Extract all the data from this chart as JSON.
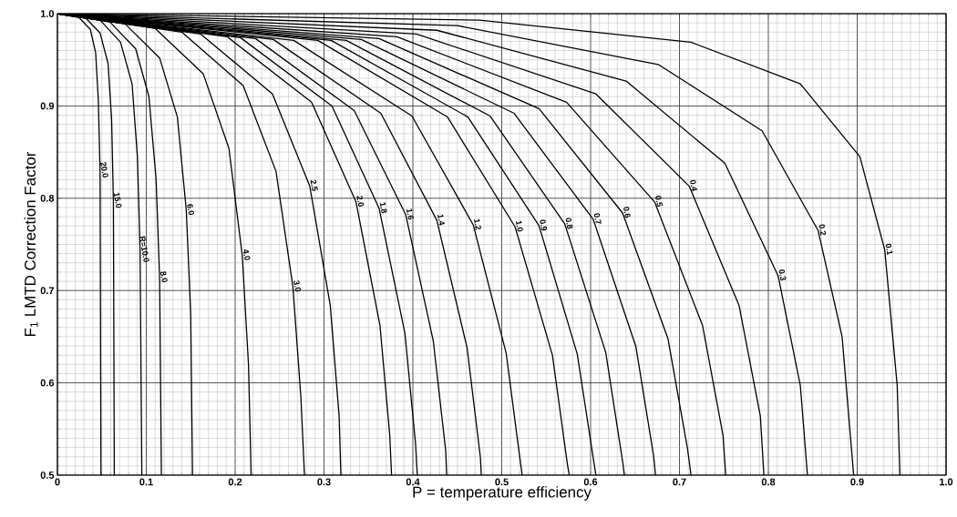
{
  "chart_data": {
    "type": "line",
    "xlabel": "P = temperature efficiency",
    "ylabel": "F$_{1}$ LMTD Correction Factor",
    "xlim": [
      0,
      1
    ],
    "ylim": [
      0.5,
      1.0
    ],
    "xticks": [
      0,
      0.1,
      0.2,
      0.3,
      0.4,
      0.5,
      0.6,
      0.7,
      0.8,
      0.9,
      {
        "value": 1.0,
        "label": "1.0"
      }
    ],
    "yticks": [
      0.5,
      0.6,
      0.7,
      0.8,
      0.9,
      {
        "value": 1.0,
        "label": "1.0"
      }
    ],
    "grid": true,
    "series": [
      {
        "name": "20.0",
        "color": "#000000",
        "x": [
          0,
          0.024,
          0.037,
          0.043,
          0.046,
          0.048,
          0.049
        ],
        "values": [
          1,
          0.996,
          0.983,
          0.958,
          0.907,
          0.83,
          0.5
        ]
      },
      {
        "name": "15.0",
        "color": "#000000",
        "x": [
          0,
          0.032,
          0.048,
          0.057,
          0.061,
          0.063,
          0.064
        ],
        "values": [
          1,
          0.995,
          0.979,
          0.946,
          0.885,
          0.797,
          0.5
        ]
      },
      {
        "name": "R=10.0",
        "color": "#000000",
        "x": [
          0,
          0.048,
          0.071,
          0.084,
          0.09,
          0.093,
          0.095
        ],
        "values": [
          1,
          0.993,
          0.969,
          0.924,
          0.845,
          0.744,
          0.5
        ]
      },
      {
        "name": "8.0",
        "color": "#000000",
        "x": [
          0,
          0.059,
          0.088,
          0.103,
          0.111,
          0.115,
          0.117
        ],
        "values": [
          1,
          0.991,
          0.962,
          0.91,
          0.821,
          0.714,
          0.5
        ]
      },
      {
        "name": "6.0",
        "color": "#000000",
        "x": [
          0,
          0.076,
          0.115,
          0.135,
          0.145,
          0.15,
          0.152
        ],
        "values": [
          1,
          0.989,
          0.952,
          0.888,
          0.787,
          0.674,
          0.5
        ]
      },
      {
        "name": "4.0",
        "color": "#000000",
        "x": [
          0,
          0.11,
          0.164,
          0.193,
          0.208,
          0.215,
          0.218
        ],
        "values": [
          1,
          0.984,
          0.935,
          0.854,
          0.738,
          0.62,
          0.5
        ]
      },
      {
        "name": "3.0",
        "color": "#000000",
        "x": [
          0,
          0.14,
          0.209,
          0.246,
          0.265,
          0.274,
          0.278
        ],
        "values": [
          1,
          0.98,
          0.922,
          0.829,
          0.704,
          0.584,
          0.5
        ]
      },
      {
        "name": "2.5",
        "color": "#000000",
        "x": [
          0,
          0.161,
          0.242,
          0.284,
          0.307,
          0.317,
          0.319
        ],
        "values": [
          1,
          0.978,
          0.913,
          0.813,
          0.684,
          0.564,
          0.5
        ]
      },
      {
        "name": "2.0",
        "color": "#000000",
        "x": [
          0,
          0.191,
          0.286,
          0.336,
          0.363,
          0.374,
          0.376
        ],
        "values": [
          1,
          0.975,
          0.904,
          0.796,
          0.662,
          0.543,
          0.5
        ]
      },
      {
        "name": "1.8",
        "color": "#000000",
        "x": [
          0,
          0.206,
          0.309,
          0.362,
          0.391,
          0.403,
          0.405
        ],
        "values": [
          1,
          0.974,
          0.9,
          0.789,
          0.654,
          0.534,
          0.5
        ]
      },
      {
        "name": "1.6",
        "color": "#000000",
        "x": [
          0,
          0.223,
          0.334,
          0.392,
          0.423,
          0.437,
          0.438
        ],
        "values": [
          1,
          0.973,
          0.895,
          0.782,
          0.645,
          0.526,
          0.5
        ]
      },
      {
        "name": "1.4",
        "color": "#000000",
        "x": [
          0,
          0.243,
          0.364,
          0.427,
          0.461,
          0.476,
          0.477
        ],
        "values": [
          1,
          0.972,
          0.892,
          0.776,
          0.638,
          0.519,
          0.5
        ]
      },
      {
        "name": "1.2",
        "color": "#000000",
        "x": [
          0,
          0.266,
          0.399,
          0.468,
          0.505,
          0.521,
          0.523
        ],
        "values": [
          1,
          0.971,
          0.889,
          0.771,
          0.632,
          0.514,
          0.5
        ]
      },
      {
        "name": "1.0",
        "color": "#000000",
        "x": [
          0,
          0.293,
          0.439,
          0.515,
          0.557,
          0.574,
          0.576
        ],
        "values": [
          1,
          0.971,
          0.888,
          0.769,
          0.63,
          0.511,
          0.5
        ]
      },
      {
        "name": "0.9",
        "color": "#000000",
        "x": [
          0,
          0.308,
          0.462,
          0.542,
          0.585,
          0.604,
          0.606
        ],
        "values": [
          1,
          0.971,
          0.888,
          0.77,
          0.631,
          0.512,
          0.5
        ]
      },
      {
        "name": "0.8",
        "color": "#000000",
        "x": [
          0,
          0.325,
          0.487,
          0.571,
          0.617,
          0.636,
          0.638
        ],
        "values": [
          1,
          0.971,
          0.889,
          0.772,
          0.633,
          0.515,
          0.5
        ]
      },
      {
        "name": "0.7",
        "color": "#000000",
        "x": [
          0,
          0.342,
          0.514,
          0.603,
          0.651,
          0.671,
          0.673
        ],
        "values": [
          1,
          0.972,
          0.892,
          0.777,
          0.639,
          0.52,
          0.5
        ]
      },
      {
        "name": "0.6",
        "color": "#000000",
        "x": [
          0,
          0.362,
          0.542,
          0.636,
          0.687,
          0.709,
          0.713
        ],
        "values": [
          1,
          0.973,
          0.897,
          0.784,
          0.648,
          0.529,
          0.5
        ]
      },
      {
        "name": "0.5",
        "color": "#000000",
        "x": [
          0,
          0.382,
          0.573,
          0.672,
          0.726,
          0.749,
          0.752
        ],
        "values": [
          1,
          0.975,
          0.904,
          0.796,
          0.662,
          0.543,
          0.5
        ]
      },
      {
        "name": "0.4",
        "color": "#000000",
        "x": [
          0,
          0.404,
          0.606,
          0.711,
          0.767,
          0.791,
          0.795
        ],
        "values": [
          1,
          0.978,
          0.913,
          0.813,
          0.684,
          0.564,
          0.5
        ]
      },
      {
        "name": "0.3",
        "color": "#000000",
        "x": [
          0,
          0.427,
          0.64,
          0.751,
          0.811,
          0.836,
          0.844
        ],
        "values": [
          1,
          0.982,
          0.927,
          0.838,
          0.716,
          0.597,
          0.5
        ]
      },
      {
        "name": "0.2",
        "color": "#000000",
        "x": [
          0,
          0.45,
          0.676,
          0.793,
          0.856,
          0.883,
          0.896
        ],
        "values": [
          1,
          0.987,
          0.945,
          0.873,
          0.765,
          0.65,
          0.5
        ]
      },
      {
        "name": "0.1",
        "color": "#000000",
        "x": [
          0,
          0.475,
          0.713,
          0.836,
          0.903,
          0.931,
          0.945,
          0.948
        ],
        "values": [
          1,
          0.993,
          0.969,
          0.924,
          0.845,
          0.744,
          0.597,
          0.5
        ]
      }
    ]
  }
}
